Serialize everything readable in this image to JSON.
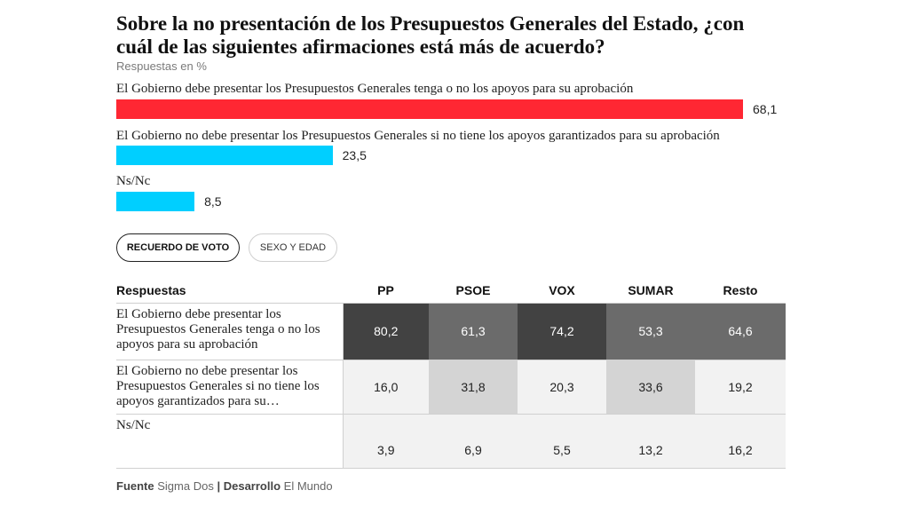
{
  "chart_data": [
    {
      "type": "bar",
      "orientation": "horizontal",
      "title": "Sobre la no presentación de los Presupuestos Generales del Estado, ¿con cuál de las siguientes afirmaciones está más de acuerdo?",
      "subtitle": "Respuestas en %",
      "categories": [
        "El Gobierno debe presentar los Presupuestos Generales tenga o no los apoyos para su aprobación",
        "El Gobierno no debe presentar los Presupuestos Generales si no tiene los apoyos garantizados para su aprobación",
        "Ns/Nc"
      ],
      "values": [
        68.1,
        23.5,
        8.5
      ],
      "value_labels": [
        "68,1",
        "23,5",
        "8,5"
      ],
      "colors": [
        "#ff2733",
        "#00cfff",
        "#00cfff"
      ],
      "xlim": [
        0,
        70
      ]
    },
    {
      "type": "table",
      "columns": [
        "Respuestas",
        "PP",
        "PSOE",
        "VOX",
        "SUMAR",
        "Resto"
      ],
      "rows": [
        {
          "label": "El Gobierno debe presentar los Presupuestos Generales tenga o no los apoyos para su aprobación",
          "values": [
            "80,2",
            "61,3",
            "74,2",
            "53,3",
            "64,6"
          ]
        },
        {
          "label": "El Gobierno no debe presentar los Presupuestos Generales si no tiene los apoyos garantizados para su…",
          "values": [
            "16,0",
            "31,8",
            "20,3",
            "33,6",
            "19,2"
          ]
        },
        {
          "label": "Ns/Nc",
          "values": [
            "3,9",
            "6,9",
            "5,5",
            "13,2",
            "16,2"
          ]
        }
      ]
    }
  ],
  "tabs": [
    {
      "label": "RECUERDO DE VOTO",
      "active": true
    },
    {
      "label": "SEXO Y EDAD",
      "active": false
    }
  ],
  "footer": {
    "source_label": "Fuente",
    "source": "Sigma Dos",
    "separator": "|",
    "dev_label": "Desarrollo",
    "dev": "El Mundo"
  }
}
